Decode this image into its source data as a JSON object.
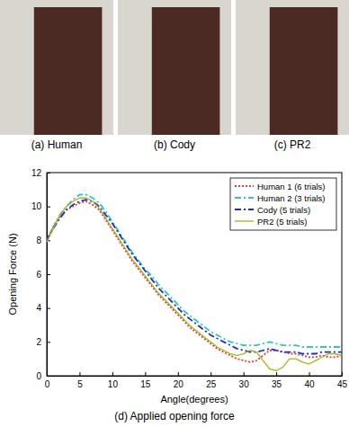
{
  "panels": [
    {
      "caption": "(a) Human"
    },
    {
      "caption": "(b) Cody"
    },
    {
      "caption": "(c) PR2"
    }
  ],
  "caption": "(d) Applied opening force",
  "chart_data": {
    "type": "line",
    "x_label": "Angle(degrees)",
    "y_label": "Opening Force (N)",
    "x": [
      0,
      1,
      2,
      3,
      4,
      5,
      6,
      7,
      8,
      9,
      10,
      11,
      12,
      13,
      14,
      15,
      16,
      17,
      18,
      19,
      20,
      21,
      22,
      23,
      24,
      25,
      26,
      27,
      28,
      29,
      30,
      31,
      32,
      33,
      34,
      35,
      36,
      37,
      38,
      39,
      40,
      41,
      42,
      43,
      44,
      45
    ],
    "xlim": [
      0,
      45
    ],
    "xticks": [
      0,
      5,
      10,
      15,
      20,
      25,
      30,
      35,
      40,
      45
    ],
    "ylim": [
      0,
      12
    ],
    "yticks": [
      0,
      2,
      4,
      6,
      8,
      10,
      12
    ],
    "legend": "upper right",
    "series": [
      {
        "name": "Human 1 (6 trials)",
        "color": "#e03a3a",
        "line_style": "dotted",
        "values": [
          8.0,
          8.8,
          9.4,
          9.8,
          10.0,
          10.2,
          10.3,
          10.1,
          9.8,
          9.2,
          8.6,
          8.0,
          7.4,
          6.8,
          6.3,
          5.8,
          5.3,
          4.8,
          4.4,
          4.0,
          3.6,
          3.2,
          2.8,
          2.5,
          2.2,
          1.9,
          1.6,
          1.4,
          1.2,
          1.0,
          0.9,
          0.8,
          0.9,
          1.2,
          1.5,
          1.5,
          1.4,
          1.3,
          1.3,
          1.2,
          1.1,
          1.1,
          1.2,
          1.1,
          1.1,
          1.2
        ]
      },
      {
        "name": "Human 2 (3 trials)",
        "color": "#2cc4c4",
        "line_style": "dashdot",
        "values": [
          8.0,
          8.8,
          9.5,
          10.0,
          10.4,
          10.7,
          10.7,
          10.5,
          10.2,
          9.7,
          9.1,
          8.5,
          7.9,
          7.3,
          6.8,
          6.3,
          5.9,
          5.4,
          5.0,
          4.6,
          4.2,
          3.8,
          3.5,
          3.2,
          2.9,
          2.6,
          2.4,
          2.2,
          2.0,
          1.9,
          1.8,
          1.8,
          1.8,
          1.9,
          2.0,
          1.9,
          1.8,
          1.8,
          1.8,
          1.7,
          1.7,
          1.7,
          1.7,
          1.7,
          1.7,
          1.7
        ]
      },
      {
        "name": "Cody (5 trials)",
        "color": "#1a2fc0",
        "line_style": "dashdot",
        "values": [
          8.0,
          8.7,
          9.3,
          9.8,
          10.1,
          10.3,
          10.4,
          10.3,
          10.0,
          9.5,
          9.0,
          8.4,
          7.8,
          7.2,
          6.7,
          6.2,
          5.7,
          5.2,
          4.8,
          4.4,
          4.0,
          3.6,
          3.3,
          3.0,
          2.7,
          2.4,
          2.2,
          2.0,
          1.8,
          1.6,
          1.5,
          1.4,
          1.4,
          1.5,
          1.6,
          1.5,
          1.4,
          1.4,
          1.4,
          1.3,
          1.3,
          1.3,
          1.4,
          1.4,
          1.4,
          1.4
        ]
      },
      {
        "name": "PR2 (5 trials)",
        "color": "#a3b41f",
        "line_style": "solid",
        "values": [
          7.9,
          8.7,
          9.5,
          10.0,
          10.3,
          10.5,
          10.5,
          10.3,
          9.9,
          9.3,
          8.7,
          8.1,
          7.5,
          6.9,
          6.4,
          5.9,
          5.4,
          4.9,
          4.5,
          4.1,
          3.7,
          3.3,
          2.9,
          2.6,
          2.3,
          2.0,
          1.7,
          1.5,
          1.3,
          1.2,
          1.3,
          1.5,
          1.4,
          0.9,
          0.4,
          0.3,
          0.5,
          1.0,
          1.0,
          0.8,
          0.7,
          0.9,
          1.1,
          1.3,
          1.3,
          1.2
        ]
      }
    ]
  }
}
